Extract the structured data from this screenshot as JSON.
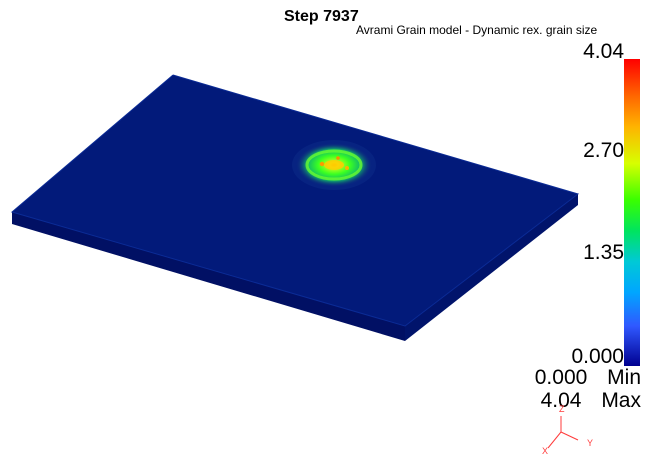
{
  "header": {
    "step_title": "Step 7937",
    "variable_title": "Avrami Grain model - Dynamic rex. grain size"
  },
  "legend": {
    "ticks": [
      "4.04",
      "2.70",
      "1.35",
      "0.000"
    ],
    "min_value": "0.000",
    "min_label": "Min",
    "max_value": "4.04",
    "max_label": "Max",
    "scale": {
      "min": 0,
      "max": 4.04
    },
    "colormap": [
      "#000090",
      "#3058ff",
      "#00a6ff",
      "#00c9d6",
      "#00e45f",
      "#39ff00",
      "#d7ff00",
      "#ffb300",
      "#ff6600",
      "#ff0000"
    ]
  },
  "axes": {
    "x": "X",
    "y": "Y",
    "z": "Z"
  },
  "colors": {
    "plate_top": "#021a7a",
    "plate_side": "#01146b",
    "plate_bottom_edge": "#001050",
    "hotspot_outer": "#11b86a",
    "hotspot_mid": "#59ff3b",
    "hotspot_inner": "#d5ff2a",
    "hotspot_core": "#ffb300"
  }
}
